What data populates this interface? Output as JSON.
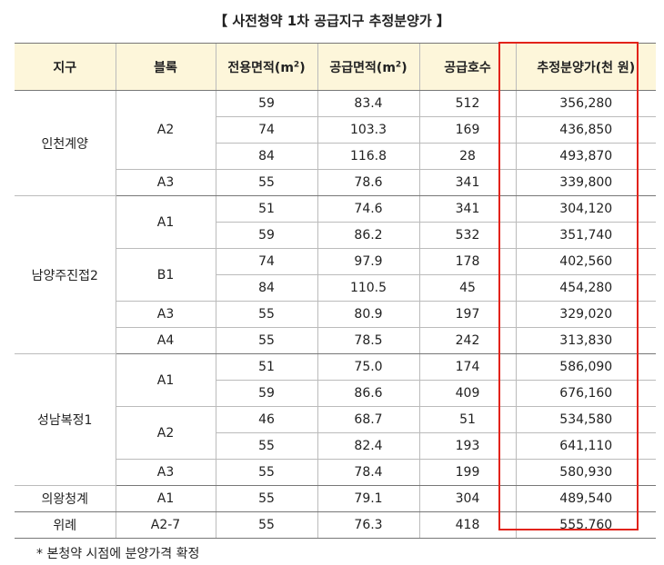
{
  "title": "【 사전청약 1차 공급지구 추정분양가 】",
  "headers": {
    "district": "지구",
    "block": "블록",
    "exclusive_area": "전용면적(m",
    "supply_area": "공급면적(m",
    "area_unit_sup": "2",
    "area_close": ")",
    "units": "공급호수",
    "price": "추정분양가(천 원)"
  },
  "districts": [
    {
      "name": "인천계양",
      "blocks": [
        {
          "name": "A2",
          "rows": [
            {
              "area": "59",
              "supply": "83.4",
              "count": "512",
              "price": "356,280"
            },
            {
              "area": "74",
              "supply": "103.3",
              "count": "169",
              "price": "436,850"
            },
            {
              "area": "84",
              "supply": "116.8",
              "count": "28",
              "price": "493,870"
            }
          ]
        },
        {
          "name": "A3",
          "rows": [
            {
              "area": "55",
              "supply": "78.6",
              "count": "341",
              "price": "339,800"
            }
          ]
        }
      ]
    },
    {
      "name": "남양주진접2",
      "blocks": [
        {
          "name": "A1",
          "rows": [
            {
              "area": "51",
              "supply": "74.6",
              "count": "341",
              "price": "304,120"
            },
            {
              "area": "59",
              "supply": "86.2",
              "count": "532",
              "price": "351,740"
            }
          ]
        },
        {
          "name": "B1",
          "rows": [
            {
              "area": "74",
              "supply": "97.9",
              "count": "178",
              "price": "402,560"
            },
            {
              "area": "84",
              "supply": "110.5",
              "count": "45",
              "price": "454,280"
            }
          ]
        },
        {
          "name": "A3",
          "rows": [
            {
              "area": "55",
              "supply": "80.9",
              "count": "197",
              "price": "329,020"
            }
          ]
        },
        {
          "name": "A4",
          "rows": [
            {
              "area": "55",
              "supply": "78.5",
              "count": "242",
              "price": "313,830"
            }
          ]
        }
      ]
    },
    {
      "name": "성남복정1",
      "blocks": [
        {
          "name": "A1",
          "rows": [
            {
              "area": "51",
              "supply": "75.0",
              "count": "174",
              "price": "586,090"
            },
            {
              "area": "59",
              "supply": "86.6",
              "count": "409",
              "price": "676,160"
            }
          ]
        },
        {
          "name": "A2",
          "rows": [
            {
              "area": "46",
              "supply": "68.7",
              "count": "51",
              "price": "534,580"
            },
            {
              "area": "55",
              "supply": "82.4",
              "count": "193",
              "price": "641,110"
            }
          ]
        },
        {
          "name": "A3",
          "rows": [
            {
              "area": "55",
              "supply": "78.4",
              "count": "199",
              "price": "580,930"
            }
          ]
        }
      ]
    },
    {
      "name": "의왕청계",
      "blocks": [
        {
          "name": "A1",
          "rows": [
            {
              "area": "55",
              "supply": "79.1",
              "count": "304",
              "price": "489,540"
            }
          ]
        }
      ]
    },
    {
      "name": "위례",
      "blocks": [
        {
          "name": "A2-7",
          "rows": [
            {
              "area": "55",
              "supply": "76.3",
              "count": "418",
              "price": "555,760"
            }
          ]
        }
      ]
    }
  ],
  "note": "*  본청약 시점에 분양가격 확정",
  "highlight_color": "#e2231a",
  "header_bg": "#fdf6da"
}
